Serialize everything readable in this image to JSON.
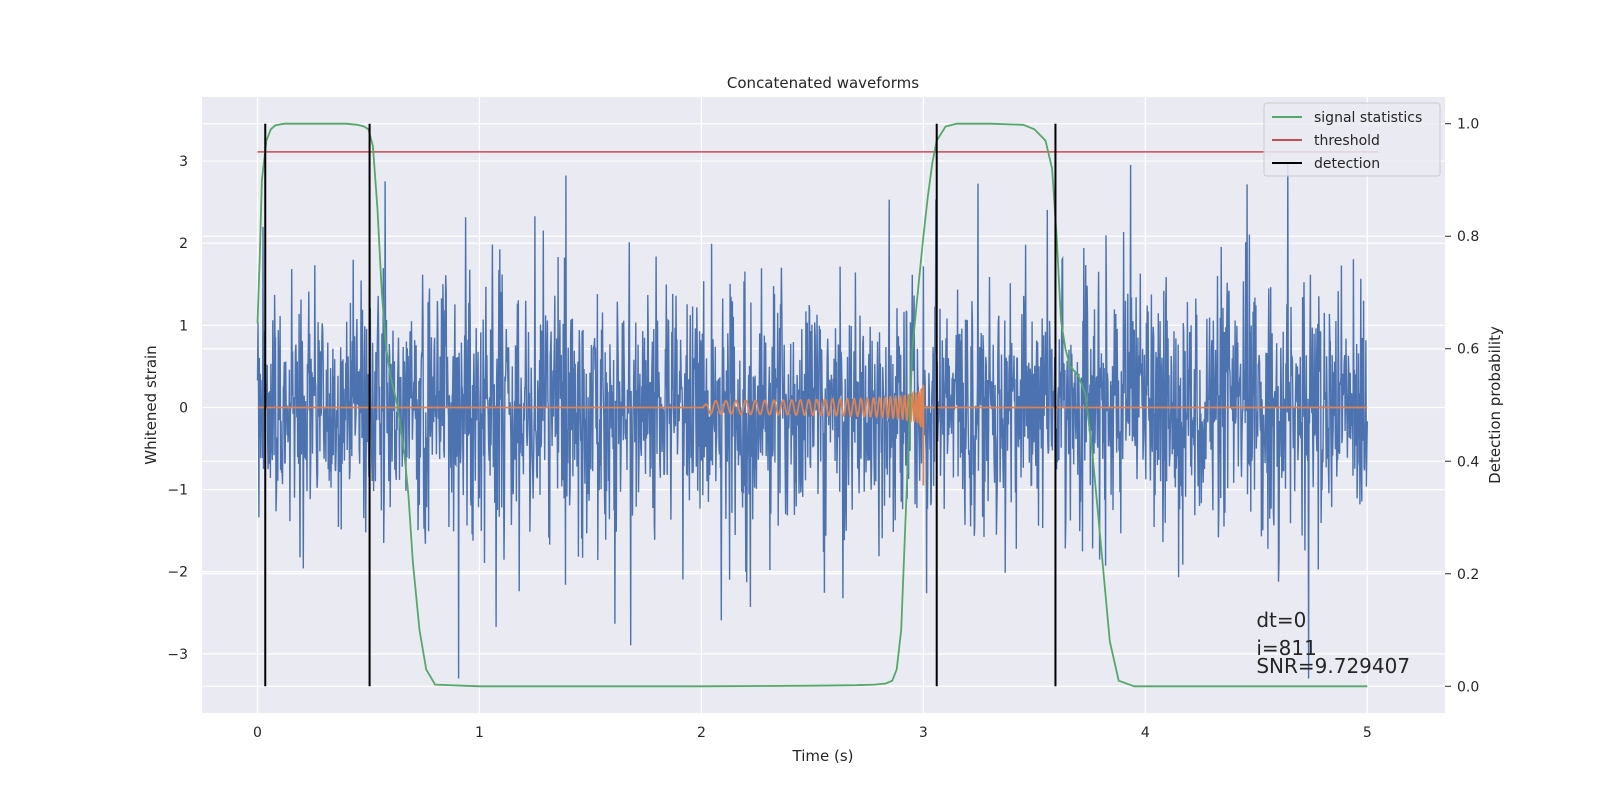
{
  "chart_data": {
    "type": "line",
    "title": "Concatenated waveforms",
    "xlabel": "Time (s)",
    "ylabel": "Whitened strain",
    "y2label": "Detection probability",
    "xlim": [
      -0.25,
      5.35
    ],
    "ylim": [
      -3.72,
      3.78
    ],
    "y2lim": [
      -0.0475,
      1.0475
    ],
    "x_ticks": [
      0,
      1,
      2,
      3,
      4,
      5
    ],
    "x_tick_labels": [
      "0",
      "1",
      "2",
      "3",
      "4",
      "5"
    ],
    "y_ticks": [
      -3,
      -2,
      -1,
      0,
      1,
      2,
      3
    ],
    "y_tick_labels": [
      "−3",
      "−2",
      "−1",
      "0",
      "1",
      "2",
      "3"
    ],
    "y2_ticks": [
      0.0,
      0.2,
      0.4,
      0.6,
      0.8,
      1.0
    ],
    "y2_tick_labels": [
      "0.0",
      "0.2",
      "0.4",
      "0.6",
      "0.8",
      "1.0"
    ],
    "grid": true,
    "legend_position": "top-right",
    "legend": [
      {
        "label": "signal statistics",
        "color": "#55a868"
      },
      {
        "label": "threshold",
        "color": "#c44e52"
      },
      {
        "label": "detection",
        "color": "#000000"
      }
    ],
    "series": [
      {
        "role": "noise",
        "color": "#4c72b0",
        "x_range": [
          0,
          5
        ],
        "approx_amplitude": 1.5,
        "peak_range": [
          -3.3,
          3.45
        ]
      },
      {
        "role": "injected-chirp",
        "color": "#dd8452",
        "x_range": [
          2.0,
          3.0
        ],
        "approx_peak_amplitude": 1.05,
        "zero_outside": true
      },
      {
        "name": "signal statistics",
        "axis": "right",
        "color": "#55a868",
        "x": [
          0.0,
          0.01,
          0.02,
          0.04,
          0.06,
          0.08,
          0.12,
          0.2,
          0.3,
          0.4,
          0.45,
          0.48,
          0.5,
          0.52,
          0.54,
          0.56,
          0.58,
          0.6,
          0.63,
          0.66,
          0.68,
          0.7,
          0.73,
          0.76,
          0.8,
          1.0,
          1.5,
          2.0,
          2.5,
          2.7,
          2.78,
          2.83,
          2.86,
          2.88,
          2.9,
          2.92,
          2.95,
          2.98,
          3.0,
          3.02,
          3.04,
          3.06,
          3.1,
          3.15,
          3.3,
          3.45,
          3.5,
          3.55,
          3.58,
          3.6,
          3.62,
          3.64,
          3.66,
          3.7,
          3.73,
          3.76,
          3.8,
          3.84,
          3.88,
          3.95,
          4.5,
          5.0
        ],
        "y": [
          0.645,
          0.76,
          0.9,
          0.97,
          0.99,
          0.997,
          1.0,
          1.0,
          1.0,
          1.0,
          0.998,
          0.995,
          0.99,
          0.96,
          0.85,
          0.7,
          0.6,
          0.55,
          0.5,
          0.42,
          0.34,
          0.22,
          0.1,
          0.03,
          0.003,
          0.0,
          0.0,
          0.0,
          0.001,
          0.002,
          0.003,
          0.005,
          0.01,
          0.03,
          0.1,
          0.3,
          0.6,
          0.72,
          0.8,
          0.87,
          0.93,
          0.97,
          0.995,
          1.0,
          1.0,
          0.998,
          0.99,
          0.97,
          0.92,
          0.8,
          0.65,
          0.6,
          0.57,
          0.55,
          0.52,
          0.42,
          0.25,
          0.08,
          0.01,
          0.0,
          0.0,
          0.0
        ]
      },
      {
        "name": "threshold",
        "axis": "right",
        "color": "#c44e52",
        "x": [
          0,
          5.05
        ],
        "y": [
          0.95,
          0.95
        ]
      },
      {
        "name": "detection",
        "axis": "right",
        "color": "#000000",
        "type": "vlines",
        "x": [
          0.035,
          0.505,
          3.06,
          3.595
        ],
        "ymin": 0.0,
        "ymax": 1.0
      }
    ],
    "annotations": [
      {
        "text": "dt=0",
        "x": 4.5,
        "y": -2.65
      },
      {
        "text": "i=811",
        "x": 4.5,
        "y": -3.05
      },
      {
        "text": "SNR=9.729407",
        "x": 4.5,
        "y": -3.25
      }
    ]
  }
}
